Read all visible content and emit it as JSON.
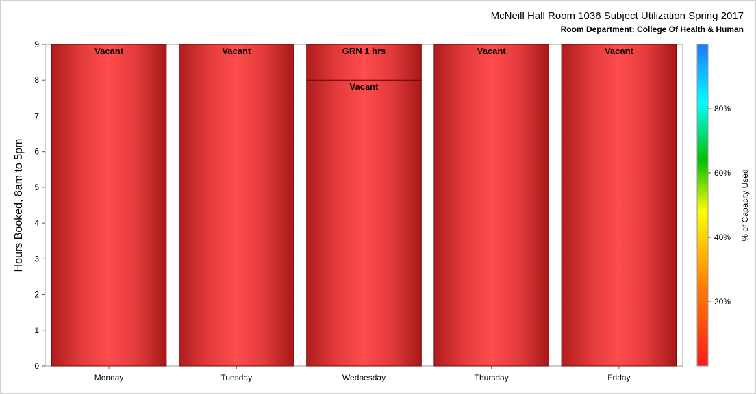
{
  "chart_data": {
    "type": "bar",
    "title": "McNeill Hall Room 1036 Subject Utilization Spring 2017",
    "subtitle": "Room Department:  College Of Health & Human",
    "ylabel": "Hours Booked, 8am to 5pm",
    "xlabel": "",
    "ylim": [
      0,
      9
    ],
    "yticks": [
      "0",
      "1",
      "2",
      "3",
      "4",
      "5",
      "6",
      "7",
      "8",
      "9"
    ],
    "categories": [
      "Monday",
      "Tuesday",
      "Wednesday",
      "Thursday",
      "Friday"
    ],
    "stacks": [
      [
        {
          "label": "Vacant",
          "hours": 9
        }
      ],
      [
        {
          "label": "Vacant",
          "hours": 9
        }
      ],
      [
        {
          "label": "Vacant",
          "hours": 8
        },
        {
          "label": "GRN 1 hrs",
          "hours": 1
        }
      ],
      [
        {
          "label": "Vacant",
          "hours": 9
        }
      ],
      [
        {
          "label": "Vacant",
          "hours": 9
        }
      ]
    ],
    "bar_color": "#ff4c4c",
    "bar_edge_color": "#b01c1c",
    "colorbar": {
      "label": "% of Capacity Used",
      "ticks": [
        "20%",
        "40%",
        "60%",
        "80%"
      ],
      "tick_values": [
        20,
        40,
        60,
        80
      ],
      "range": [
        0,
        100
      ],
      "colors": [
        "#ff1a1a",
        "#ff7f00",
        "#ffff00",
        "#00c000",
        "#00ffff",
        "#1e78ff"
      ]
    },
    "grid": false,
    "legend": "colorbar-right"
  }
}
